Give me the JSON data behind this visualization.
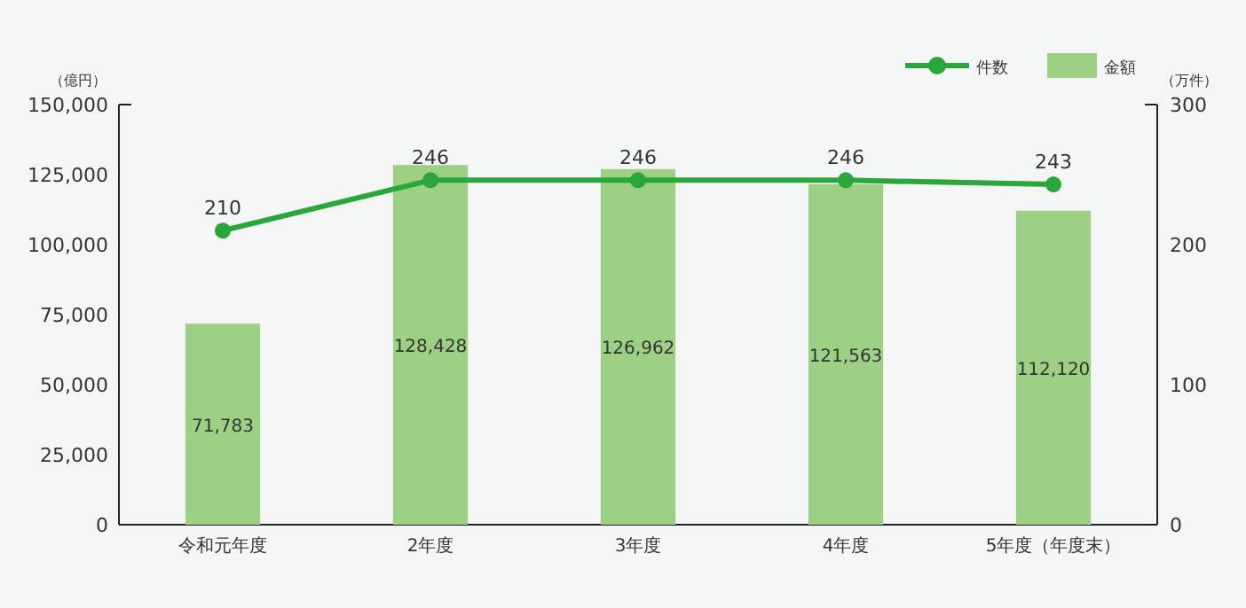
{
  "chart_data": {
    "type": "bar",
    "ylabel": "（億円）",
    "y2label": "（万件）",
    "categories": [
      "令和元年度",
      "2年度",
      "3年度",
      "4年度",
      "5年度（年度末）"
    ],
    "series": [
      {
        "name": "件数",
        "type": "line",
        "axis": "y2",
        "color": "#2aa63a",
        "values": [
          210,
          246,
          246,
          246,
          243
        ],
        "value_labels": [
          "210",
          "246",
          "246",
          "246",
          "243"
        ]
      },
      {
        "name": "金額",
        "color": "#9dcf85",
        "values": [
          71783,
          128428,
          126962,
          121563,
          112120
        ],
        "value_labels": [
          "71,783",
          "128,428",
          "126,962",
          "121,563",
          "112,120"
        ]
      }
    ],
    "ylim": [
      0,
      150000
    ],
    "yticks": [
      {
        "value": 0,
        "label": "0"
      },
      {
        "value": 25000,
        "label": "25,000"
      },
      {
        "value": 50000,
        "label": "50,000"
      },
      {
        "value": 75000,
        "label": "75,000"
      },
      {
        "value": 100000,
        "label": "100,000"
      },
      {
        "value": 125000,
        "label": "125,000"
      },
      {
        "value": 150000,
        "label": "150,000"
      }
    ],
    "y2lim": [
      0,
      300
    ],
    "y2ticks": [
      0,
      100,
      200,
      300
    ],
    "legend": "top right",
    "marker": "circle",
    "grid": false
  }
}
